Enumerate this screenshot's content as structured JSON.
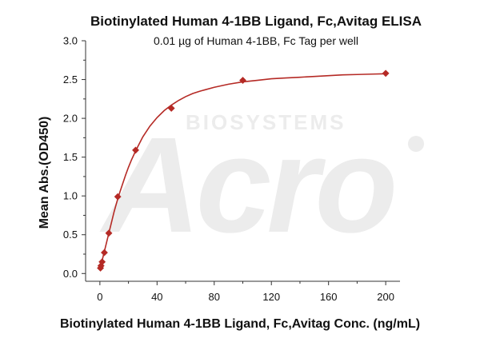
{
  "chart_data": {
    "type": "scatter",
    "title": "Biotinylated Human 4-1BB Ligand, Fc,Avitag ELISA",
    "subtitle": "0.01 µg of Human 4-1BB, Fc Tag per well",
    "xlabel": "Biotinylated Human 4-1BB Ligand, Fc,Avitag Conc. (ng/mL)",
    "ylabel": "Mean Abs.(OD450)",
    "xlim": [
      -10,
      210
    ],
    "ylim": [
      -0.1,
      3.0
    ],
    "x_ticks": [
      0,
      40,
      80,
      120,
      160,
      200
    ],
    "y_ticks": [
      0.0,
      0.5,
      1.0,
      1.5,
      2.0,
      2.5,
      3.0
    ],
    "x_tick_labels": [
      "0",
      "40",
      "80",
      "120",
      "160",
      "200"
    ],
    "y_tick_labels": [
      "0.0",
      "0.5",
      "1.0",
      "1.5",
      "2.0",
      "2.5",
      "3.0"
    ],
    "grid": false,
    "series": [
      {
        "marker": "diamond",
        "color": "#b52a25",
        "x": [
          0.39,
          0.78,
          1.56,
          3.13,
          6.25,
          12.5,
          25,
          50,
          100,
          200
        ],
        "y": [
          0.07,
          0.1,
          0.15,
          0.27,
          0.52,
          0.99,
          1.59,
          2.13,
          2.49,
          2.58
        ]
      }
    ],
    "fit_curve": {
      "color": "#b52a25",
      "x": [
        0,
        2,
        4,
        6,
        8,
        10,
        12,
        14,
        16,
        18,
        20,
        22,
        25,
        30,
        35,
        40,
        45,
        50,
        55,
        60,
        65,
        70,
        80,
        90,
        100,
        110,
        120,
        130,
        140,
        150,
        160,
        170,
        180,
        190,
        200
      ],
      "y": [
        0.06,
        0.2,
        0.35,
        0.5,
        0.65,
        0.8,
        0.93,
        1.05,
        1.16,
        1.27,
        1.37,
        1.46,
        1.58,
        1.76,
        1.9,
        2.01,
        2.1,
        2.17,
        2.23,
        2.28,
        2.32,
        2.35,
        2.4,
        2.44,
        2.47,
        2.49,
        2.51,
        2.52,
        2.53,
        2.54,
        2.55,
        2.56,
        2.565,
        2.57,
        2.575
      ]
    },
    "colors": {
      "series": "#b52a25",
      "axis": "#333333",
      "text": "#111111",
      "watermark": "#ececec"
    }
  }
}
